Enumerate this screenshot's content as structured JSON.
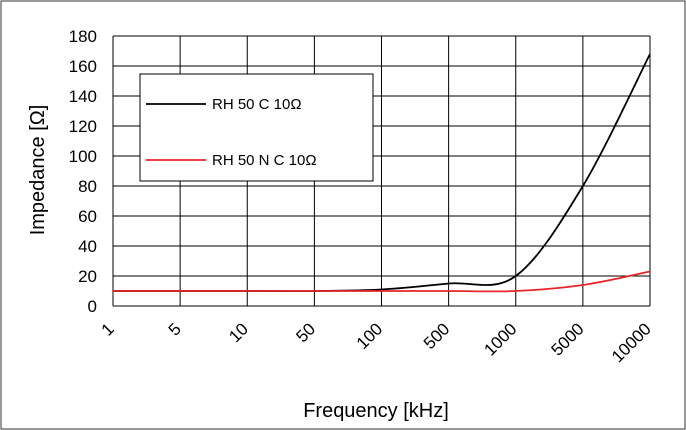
{
  "chart_data": {
    "type": "line",
    "xlabel": "Frequency [kHz]",
    "ylabel": "Impedance [Ω]",
    "x_scale": "log",
    "x_ticks": [
      "1",
      "5",
      "10",
      "50",
      "100",
      "500",
      "1000",
      "5000",
      "10000"
    ],
    "y_ticks": [
      "0",
      "20",
      "40",
      "60",
      "80",
      "100",
      "120",
      "140",
      "160",
      "180"
    ],
    "ylim": [
      0,
      180
    ],
    "grid": true,
    "legend_position": "top-left",
    "series": [
      {
        "name": "RH 50 C 10Ω",
        "color": "#000000",
        "x": [
          "1",
          "5",
          "10",
          "50",
          "100",
          "500",
          "1000",
          "5000",
          "10000"
        ],
        "values": [
          10,
          10,
          10,
          10,
          11,
          15,
          20,
          80,
          168
        ]
      },
      {
        "name": "RH 50 N C 10Ω",
        "color": "#e8262b",
        "x": [
          "1",
          "5",
          "10",
          "50",
          "100",
          "500",
          "1000",
          "5000",
          "10000"
        ],
        "values": [
          10,
          10,
          10,
          10,
          10,
          10,
          10,
          14,
          23
        ]
      }
    ]
  }
}
